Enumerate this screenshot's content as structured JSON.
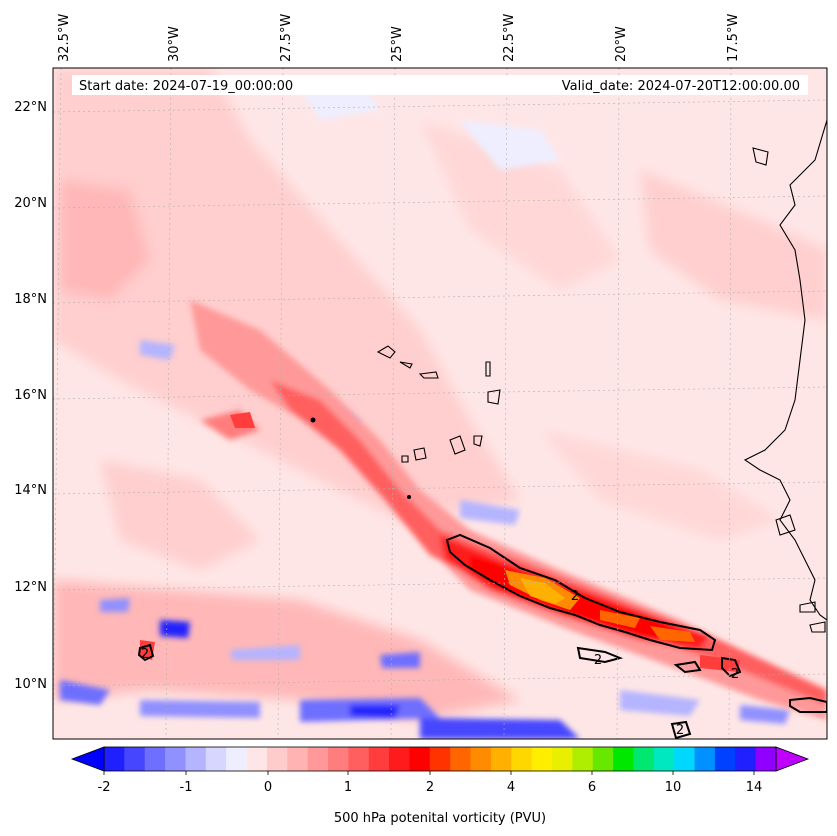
{
  "header": {
    "start_date": "Start date: 2024-07-19_00:00:00",
    "valid_date": "Valid_date: 2024-07-20T12:00:00.00"
  },
  "lon_labels": [
    "32.5°W",
    "30°W",
    "27.5°W",
    "25°W",
    "22.5°W",
    "20°W",
    "17.5°W"
  ],
  "lat_labels": [
    "22°N",
    "20°N",
    "18°N",
    "16°N",
    "14°N",
    "12°N",
    "10°N"
  ],
  "contour_labels": [
    "2",
    "2",
    "2",
    "2",
    "2"
  ],
  "colorbar": {
    "ticks": [
      "-2",
      "-1",
      "0",
      "1",
      "2",
      "4",
      "6",
      "10",
      "14"
    ],
    "label": "500 hPa potenital vorticity (PVU)",
    "colors": [
      "#0000ff",
      "#2020ff",
      "#4646ff",
      "#6e6eff",
      "#9090ff",
      "#b4b4ff",
      "#d6d6ff",
      "#eeeeff",
      "#ffe6e6",
      "#ffcccc",
      "#ffb3b3",
      "#ff9999",
      "#ff7d7d",
      "#ff5f5f",
      "#ff3d3d",
      "#ff1b1b",
      "#ff0000",
      "#ff3300",
      "#ff6600",
      "#ff8c00",
      "#ffb000",
      "#ffd700",
      "#ffee00",
      "#e8f000",
      "#b0ee00",
      "#66e800",
      "#00e800",
      "#00e870",
      "#00e8c0",
      "#00d8ff",
      "#0090ff",
      "#0040ff",
      "#2020ff",
      "#9000ff",
      "#c000ff"
    ]
  },
  "chart_data": {
    "type": "heatmap",
    "variable": "500 hPa potential vorticity",
    "units": "PVU",
    "lon_range": [
      -33,
      -16.2
    ],
    "lat_range": [
      8.9,
      22.8
    ],
    "colorbar_ticks": [
      -2,
      -1,
      0,
      1,
      2,
      4,
      6,
      10,
      14
    ],
    "contour_level": 2,
    "features": [
      {
        "name": "max PV band",
        "lon_start": -24.0,
        "lat_start": 13.0,
        "lon_end": -17.0,
        "lat_end": 10.9,
        "peak_pvu": 4
      }
    ]
  }
}
